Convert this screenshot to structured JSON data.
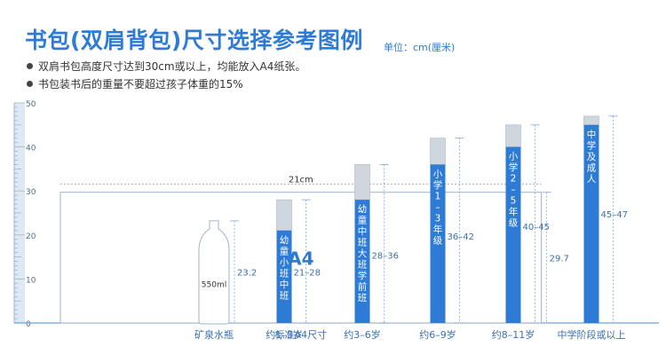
{
  "header": {
    "title": "书包(双肩背包)尺寸选择参考图例",
    "unit": "单位：cm(厘米)"
  },
  "notes": [
    "双肩书包高度尺寸达到30cm或以上，均能放入A4纸张。",
    "书包装书后的重量不要超过孩子体重的15%"
  ],
  "colors": {
    "accent": "#2e7bd6",
    "bar_top": "#cfd6de",
    "ruler": "#9fb6cc"
  },
  "chart_data": {
    "type": "bar",
    "title": "书包(双肩背包)尺寸选择参考图例",
    "ylabel": "单位：cm(厘米)",
    "ylim": [
      0,
      50
    ],
    "yticks": [
      0,
      10,
      20,
      30,
      40,
      50
    ],
    "reference_objects": [
      {
        "name": "A4",
        "label": "标准A4尺寸",
        "width": 21,
        "height": 29.7,
        "width_label": "21cm",
        "height_label": "29.7"
      },
      {
        "name": "550ml",
        "label": "矿泉水瓶",
        "height": 23.2,
        "height_label": "23.2"
      }
    ],
    "categories": [
      "约1–3岁",
      "约3–6岁",
      "约6–9岁",
      "约8–11岁",
      "中学阶段或以上"
    ],
    "series": [
      {
        "low": 21,
        "high": 28,
        "range_label": "21–28",
        "bar_text": "幼童小班中班"
      },
      {
        "low": 28,
        "high": 36,
        "range_label": "28–36",
        "bar_text": "幼童中班大班学前班"
      },
      {
        "low": 36,
        "high": 42,
        "range_label": "36–42",
        "bar_text": "小学1–3年级"
      },
      {
        "low": 40,
        "high": 45,
        "range_label": "40–45",
        "bar_text": "小学2–5年级"
      },
      {
        "low": 45,
        "high": 47,
        "range_label": "45–47",
        "bar_text": "中学及成人"
      }
    ],
    "grid": false,
    "legend": "none"
  }
}
